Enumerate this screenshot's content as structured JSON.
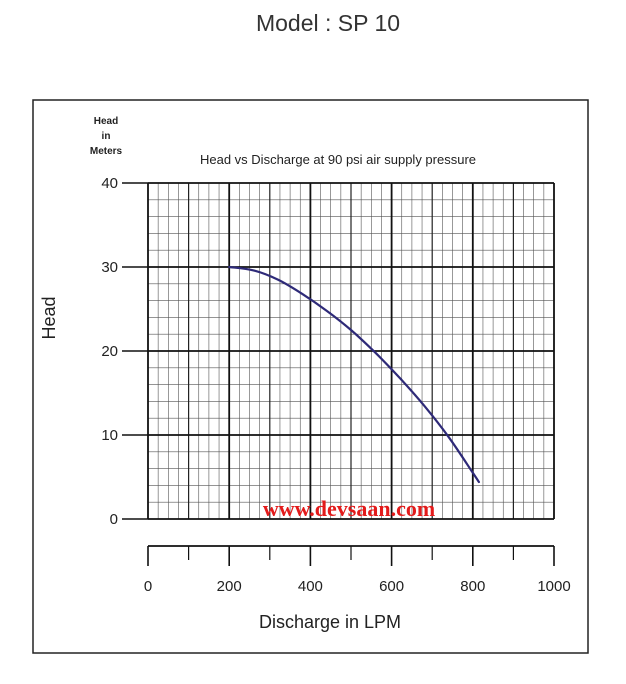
{
  "page": {
    "title": "Model : SP 10"
  },
  "chart_data": {
    "type": "line",
    "title": "Head vs Discharge at 90 psi air supply pressure",
    "ylabel": "Head",
    "yunit": "Head in Meters",
    "xlabel": "Discharge in LPM",
    "xlim": [
      0,
      1000
    ],
    "ylim": [
      0,
      40
    ],
    "xticks": [
      0,
      200,
      400,
      600,
      800,
      1000
    ],
    "yticks": [
      0,
      10,
      20,
      30,
      40
    ],
    "grid": true,
    "series": [
      {
        "color": "#2e2a78",
        "x": [
          200,
          260,
          320,
          380,
          440,
          500,
          560,
          620,
          680,
          740,
          800,
          815
        ],
        "y": [
          30,
          29.6,
          28.5,
          26.8,
          24.8,
          22.5,
          19.8,
          16.8,
          13.5,
          9.8,
          5.5,
          4.4
        ]
      }
    ]
  },
  "watermark": "www.devsaan.com"
}
